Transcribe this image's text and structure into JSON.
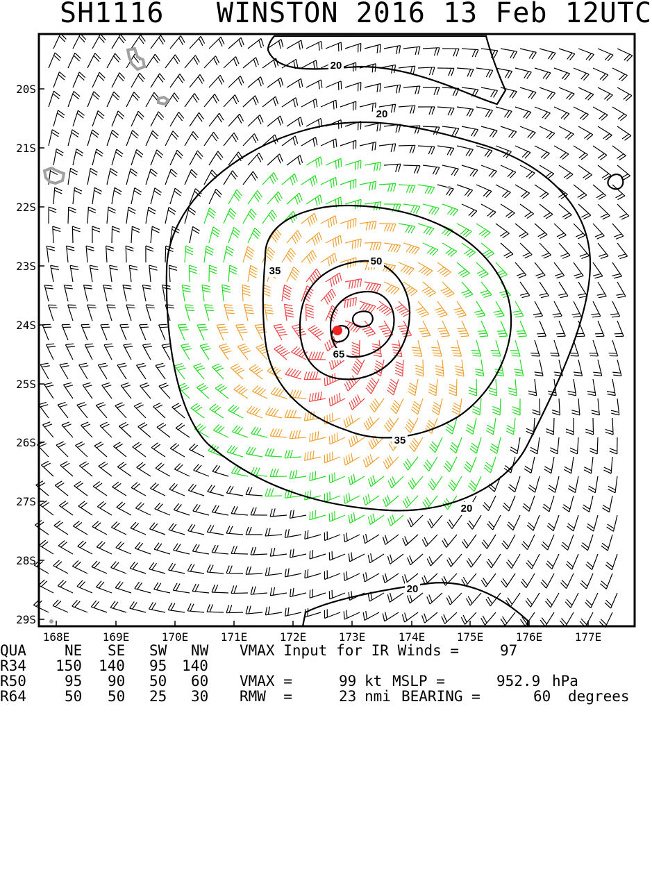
{
  "title": {
    "storm_id": "SH1116",
    "storm_name_time": "WINSTON 2016 13 Feb 12UTC"
  },
  "map": {
    "lon_ticks": [
      "168E",
      "169E",
      "170E",
      "171E",
      "172E",
      "173E",
      "174E",
      "175E",
      "176E",
      "177E"
    ],
    "lat_ticks": [
      "20S",
      "21S",
      "22S",
      "23S",
      "24S",
      "25S",
      "26S",
      "27S",
      "28S",
      "29S"
    ],
    "contour_labels": [
      "20",
      "20",
      "20",
      "20",
      "35",
      "35",
      "50",
      "65"
    ],
    "barb_colors": {
      "calm": "#000000",
      "r34": "#22dd22",
      "r50": "#f0a030",
      "r64": "#ee4444"
    },
    "center_marker_color": "#ee2222",
    "land_color": "#a0a0a0"
  },
  "wind_radii": {
    "header": [
      "QUA",
      "NE",
      "SE",
      "SW",
      "NW"
    ],
    "rows": [
      {
        "label": "R34",
        "ne": "150",
        "se": "140",
        "sw": "95",
        "nw": "140"
      },
      {
        "label": "R50",
        "ne": "95",
        "se": "90",
        "sw": "50",
        "nw": "60"
      },
      {
        "label": "R64",
        "ne": "50",
        "se": "50",
        "sw": "25",
        "nw": "30"
      }
    ]
  },
  "summary": {
    "vmax_input_label": "VMAX Input for IR Winds =",
    "vmax_input_value": "97",
    "vmax_label": "VMAX =",
    "vmax_value": "99",
    "vmax_unit": "kt",
    "mslp_label": "MSLP =",
    "mslp_value": "952.9",
    "mslp_unit": "hPa",
    "rmw_label": "RMW  =",
    "rmw_value": "23",
    "rmw_unit": "nmi",
    "bearing_label": "BEARING =",
    "bearing_value": "60",
    "bearing_unit": "degrees"
  }
}
